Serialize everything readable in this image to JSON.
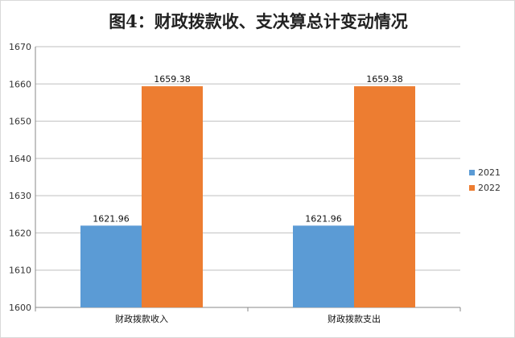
{
  "chart_data": {
    "type": "bar",
    "title": "图4：财政拨款收、支决算总计变动情况",
    "categories": [
      "财政拨款收入",
      "财政拨款支出"
    ],
    "series": [
      {
        "name": "2021",
        "values": [
          1621.96,
          1621.96
        ],
        "labels": [
          "1621.96",
          "1621.96"
        ],
        "color": "#5b9bd5"
      },
      {
        "name": "2022",
        "values": [
          1659.38,
          1659.38
        ],
        "labels": [
          "1659.38",
          "1659.38"
        ],
        "color": "#ed7d31"
      }
    ],
    "ylim": [
      1600,
      1670
    ],
    "yticks": [
      "1600",
      "1610",
      "1620",
      "1630",
      "1640",
      "1650",
      "1660",
      "1670"
    ],
    "grid": true,
    "legend": "right"
  }
}
